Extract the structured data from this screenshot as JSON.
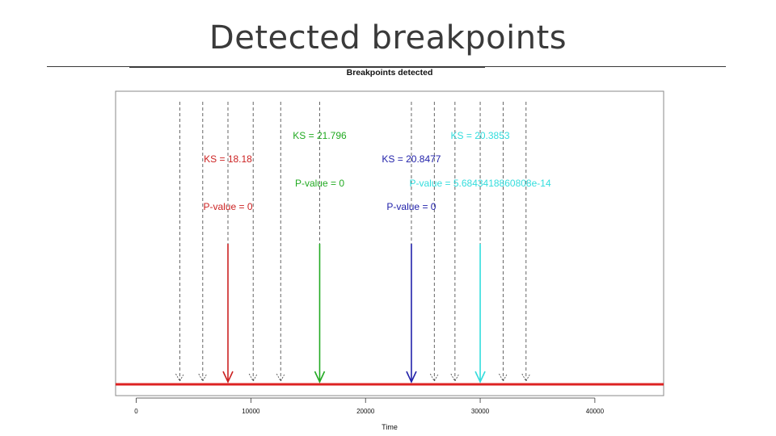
{
  "slide": {
    "title": "Detected breakpoints"
  },
  "chart_data": {
    "type": "line",
    "title": "Breakpoints detected",
    "xlabel": "Time",
    "ylabel": "",
    "xlim": [
      -1800,
      46000
    ],
    "x_ticks": [
      0,
      10000,
      20000,
      30000,
      40000
    ],
    "x_tick_labels": [
      "0",
      "10000",
      "20000",
      "30000",
      "40000"
    ],
    "candidate_breakpoints": [
      3800,
      5800,
      8000,
      10200,
      12600,
      16000,
      24000,
      26000,
      27800,
      30000,
      32000,
      34000
    ],
    "detected_breakpoints": [
      {
        "time": 8000,
        "color": "#cc2222",
        "ks_label": "KS =  18.18",
        "p_label": "P-value =  0"
      },
      {
        "time": 16000,
        "color": "#22aa22",
        "ks_label": "KS =  21.796",
        "p_label": "P-value =  0"
      },
      {
        "time": 24000,
        "color": "#2222aa",
        "ks_label": "KS =  20.8477",
        "p_label": "P-value =  0"
      },
      {
        "time": 30000,
        "color": "#33dddd",
        "ks_label": "KS =  20.3853",
        "p_label": "P-value =  5.6843418860808e-14"
      }
    ],
    "baseline_color": "#dd2222",
    "grid": false
  }
}
